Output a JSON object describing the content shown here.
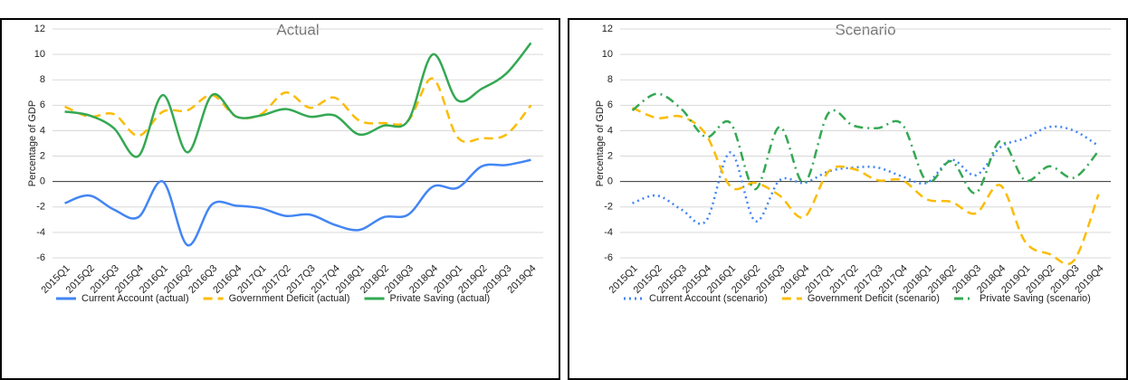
{
  "chart_data": [
    {
      "type": "line",
      "title": "Actual",
      "y_label": "Percentage of GDP",
      "categories": [
        "2015Q1",
        "2015Q2",
        "2015Q3",
        "2015Q4",
        "2016Q1",
        "2016Q2",
        "2016Q3",
        "2016Q4",
        "2017Q1",
        "2017Q2",
        "2017Q3",
        "2017Q4",
        "2018Q1",
        "2018Q2",
        "2018Q3",
        "2018Q4",
        "2019Q1",
        "2019Q2",
        "2019Q3",
        "2019Q4"
      ],
      "ylim": [
        -6,
        12
      ],
      "yticks": [
        -6,
        -4,
        -2,
        0,
        2,
        4,
        6,
        8,
        10,
        12
      ],
      "grid": true,
      "smooth": true,
      "legend": "bottom",
      "series": [
        {
          "name": "Current Account (actual)",
          "color": "#4285f4",
          "dash": "solid",
          "values": [
            -1.7,
            -1.1,
            -2.2,
            -2.8,
            0.0,
            -5.0,
            -1.8,
            -1.9,
            -2.1,
            -2.7,
            -2.6,
            -3.4,
            -3.8,
            -2.8,
            -2.6,
            -0.4,
            -0.5,
            1.2,
            1.3,
            1.7
          ]
        },
        {
          "name": "Government Deficit (actual)",
          "color": "#fbbc04",
          "dash": "dash",
          "values": [
            5.9,
            5.1,
            5.3,
            3.6,
            5.5,
            5.6,
            6.8,
            5.1,
            5.3,
            7.0,
            5.8,
            6.6,
            4.8,
            4.6,
            4.8,
            8.1,
            3.5,
            3.4,
            3.7,
            6.0
          ]
        },
        {
          "name": "Private Saving (actual)",
          "color": "#34a853",
          "dash": "solid",
          "values": [
            5.5,
            5.2,
            4.2,
            2.0,
            6.8,
            2.3,
            6.8,
            5.1,
            5.2,
            5.7,
            5.1,
            5.2,
            3.7,
            4.4,
            4.8,
            10.0,
            6.4,
            7.3,
            8.5,
            10.9
          ]
        }
      ]
    },
    {
      "type": "line",
      "title": "Scenario",
      "y_label": "Percentage of GDP",
      "categories": [
        "2015Q1",
        "2015Q2",
        "2015Q3",
        "2015Q4",
        "2016Q1",
        "2016Q2",
        "2016Q3",
        "2016Q4",
        "2017Q1",
        "2017Q2",
        "2017Q3",
        "2017Q4",
        "2018Q1",
        "2018Q2",
        "2018Q3",
        "2018Q4",
        "2019Q1",
        "2019Q2",
        "2019Q3",
        "2019Q4"
      ],
      "ylim": [
        -6,
        12
      ],
      "yticks": [
        -6,
        -4,
        -2,
        0,
        2,
        4,
        6,
        8,
        10,
        12
      ],
      "grid": true,
      "smooth": true,
      "legend": "bottom",
      "series": [
        {
          "name": "Current Account (scenario)",
          "color": "#4285f4",
          "dash": "dot",
          "values": [
            -1.7,
            -1.1,
            -2.2,
            -3.1,
            2.3,
            -3.1,
            0.1,
            -0.1,
            0.8,
            1.1,
            1.1,
            0.4,
            -0.1,
            1.7,
            0.5,
            2.7,
            3.4,
            4.3,
            4.0,
            2.8
          ]
        },
        {
          "name": "Government Deficit (scenario)",
          "color": "#fbbc04",
          "dash": "dash",
          "values": [
            5.8,
            5.0,
            5.1,
            3.7,
            -0.4,
            -0.1,
            -1.1,
            -2.8,
            0.8,
            1.0,
            0.1,
            0.1,
            -1.4,
            -1.6,
            -2.5,
            -0.3,
            -4.7,
            -5.7,
            -6.2,
            -1.0
          ]
        },
        {
          "name": "Private Saving (scenario)",
          "color": "#34a853",
          "dash": "dashdot",
          "values": [
            5.6,
            6.9,
            5.7,
            3.5,
            4.6,
            -0.6,
            4.3,
            -0.1,
            5.4,
            4.4,
            4.2,
            4.5,
            0.0,
            1.6,
            -0.9,
            3.2,
            0.1,
            1.2,
            0.3,
            2.4
          ]
        }
      ]
    }
  ]
}
